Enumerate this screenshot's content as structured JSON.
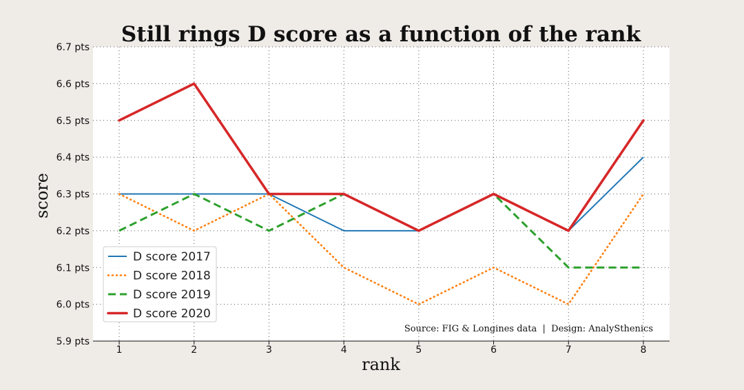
{
  "chart_data": {
    "type": "line",
    "title": "Still rings D score as a function of the rank",
    "xlabel": "rank",
    "ylabel": "score",
    "x": [
      1,
      2,
      3,
      4,
      5,
      6,
      7,
      8
    ],
    "xlim": [
      0.65,
      8.35
    ],
    "ylim": [
      5.9,
      6.7
    ],
    "yticks": [
      5.9,
      6.0,
      6.1,
      6.2,
      6.3,
      6.4,
      6.5,
      6.6,
      6.7
    ],
    "ytick_suffix": " pts",
    "grid": true,
    "legend_position": "lower-left",
    "source_note": "Source: FIG & Longines data  |  Design: AnalySthenics",
    "series": [
      {
        "name": "D score 2017",
        "values": [
          6.3,
          6.3,
          6.3,
          6.2,
          6.2,
          6.3,
          6.2,
          6.4
        ],
        "color": "#1f77b4",
        "style": "solid"
      },
      {
        "name": "D score 2018",
        "values": [
          6.3,
          6.2,
          6.3,
          6.1,
          6.0,
          6.1,
          6.0,
          6.3
        ],
        "color": "#ff7f0e",
        "style": "dotted"
      },
      {
        "name": "D score 2019",
        "values": [
          6.2,
          6.3,
          6.2,
          6.3,
          6.2,
          6.3,
          6.1,
          6.1
        ],
        "color": "#2ca02c",
        "style": "dashed"
      },
      {
        "name": "D score 2020",
        "values": [
          6.5,
          6.6,
          6.3,
          6.3,
          6.2,
          6.3,
          6.2,
          6.5
        ],
        "color": "#d62728",
        "style": "solid-thick"
      }
    ]
  }
}
